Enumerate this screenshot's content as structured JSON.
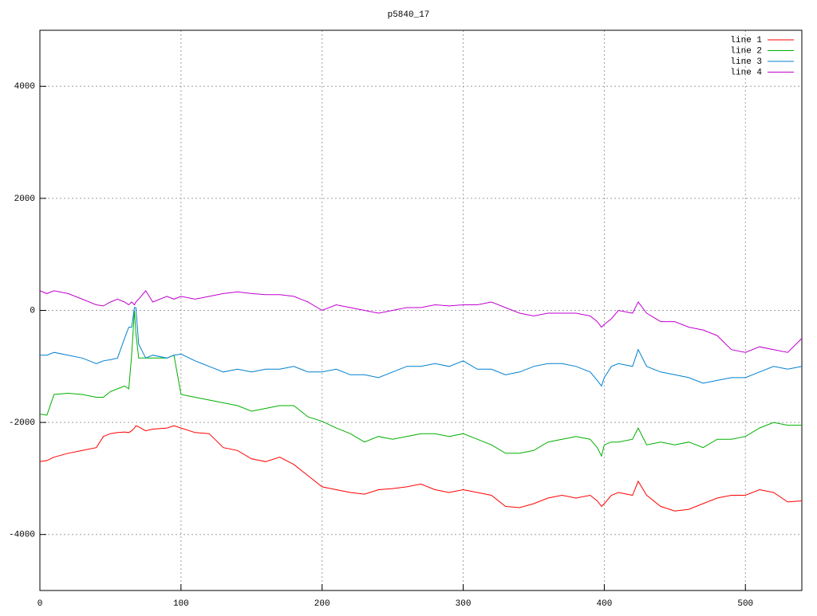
{
  "chart_data": {
    "type": "line",
    "title": "p5840_17",
    "x": [
      0,
      5,
      10,
      20,
      30,
      40,
      45,
      50,
      55,
      60,
      63,
      65,
      67,
      68,
      70,
      75,
      80,
      90,
      95,
      100,
      110,
      120,
      130,
      140,
      150,
      160,
      170,
      180,
      190,
      200,
      210,
      220,
      230,
      240,
      250,
      260,
      270,
      280,
      290,
      300,
      310,
      320,
      330,
      340,
      350,
      360,
      370,
      380,
      390,
      395,
      398,
      400,
      405,
      410,
      420,
      424,
      430,
      440,
      450,
      460,
      470,
      480,
      490,
      500,
      510,
      520,
      530,
      540
    ],
    "series": [
      {
        "name": "line 1",
        "color": "#ff0000",
        "values": [
          -2700,
          -2680,
          -2620,
          -2550,
          -2500,
          -2450,
          -2250,
          -2200,
          -2180,
          -2170,
          -2180,
          -2150,
          -2100,
          -2060,
          -2080,
          -2150,
          -2120,
          -2100,
          -2060,
          -2100,
          -2180,
          -2200,
          -2450,
          -2500,
          -2650,
          -2700,
          -2620,
          -2750,
          -2950,
          -3150,
          -3200,
          -3250,
          -3280,
          -3200,
          -3180,
          -3150,
          -3100,
          -3200,
          -3250,
          -3200,
          -3250,
          -3300,
          -3500,
          -3520,
          -3450,
          -3350,
          -3300,
          -3350,
          -3300,
          -3400,
          -3500,
          -3450,
          -3300,
          -3250,
          -3300,
          -3050,
          -3300,
          -3500,
          -3580,
          -3550,
          -3450,
          -3350,
          -3300,
          -3300,
          -3200,
          -3250,
          -3420,
          -3400
        ]
      },
      {
        "name": "line 2",
        "color": "#00b000",
        "values": [
          -1850,
          -1870,
          -1500,
          -1480,
          -1500,
          -1550,
          -1550,
          -1450,
          -1400,
          -1350,
          -1400,
          -800,
          0,
          -400,
          -850,
          -850,
          -850,
          -850,
          -800,
          -1500,
          -1550,
          -1600,
          -1650,
          -1700,
          -1800,
          -1750,
          -1700,
          -1700,
          -1900,
          -1980,
          -2100,
          -2200,
          -2350,
          -2250,
          -2300,
          -2250,
          -2200,
          -2200,
          -2250,
          -2200,
          -2300,
          -2400,
          -2550,
          -2550,
          -2500,
          -2350,
          -2300,
          -2250,
          -2300,
          -2450,
          -2600,
          -2400,
          -2350,
          -2350,
          -2300,
          -2100,
          -2400,
          -2350,
          -2400,
          -2350,
          -2450,
          -2300,
          -2300,
          -2250,
          -2100,
          -2000,
          -2050,
          -2050
        ]
      },
      {
        "name": "line 3",
        "color": "#0080d0",
        "values": [
          -800,
          -800,
          -750,
          -800,
          -850,
          -950,
          -900,
          -880,
          -850,
          -500,
          -300,
          -300,
          50,
          50,
          -600,
          -850,
          -800,
          -850,
          -800,
          -780,
          -900,
          -1000,
          -1100,
          -1050,
          -1100,
          -1050,
          -1050,
          -1000,
          -1100,
          -1100,
          -1050,
          -1150,
          -1150,
          -1200,
          -1100,
          -1000,
          -1000,
          -950,
          -1000,
          -900,
          -1050,
          -1050,
          -1150,
          -1100,
          -1000,
          -950,
          -950,
          -1000,
          -1100,
          -1250,
          -1350,
          -1200,
          -1000,
          -950,
          -1000,
          -700,
          -1000,
          -1100,
          -1150,
          -1200,
          -1300,
          -1250,
          -1200,
          -1200,
          -1100,
          -1000,
          -1050,
          -1000
        ]
      },
      {
        "name": "line 4",
        "color": "#c000d0",
        "values": [
          350,
          300,
          350,
          300,
          200,
          100,
          80,
          150,
          200,
          150,
          100,
          150,
          100,
          150,
          200,
          350,
          150,
          250,
          200,
          250,
          200,
          250,
          300,
          330,
          300,
          280,
          280,
          250,
          150,
          0,
          100,
          50,
          0,
          -50,
          0,
          50,
          50,
          100,
          80,
          100,
          100,
          150,
          50,
          -50,
          -100,
          -50,
          -50,
          -50,
          -100,
          -200,
          -300,
          -250,
          -150,
          0,
          -50,
          150,
          -50,
          -200,
          -200,
          -300,
          -350,
          -450,
          -700,
          -750,
          -650,
          -700,
          -750,
          -500
        ]
      }
    ],
    "xlim": [
      0,
      540
    ],
    "xticks": [
      0,
      100,
      200,
      300,
      400,
      500
    ],
    "ylim": [
      -5000,
      5000
    ],
    "yticks": [
      -4000,
      -2000,
      0,
      2000,
      4000
    ],
    "grid": true,
    "legend": "top-right"
  }
}
